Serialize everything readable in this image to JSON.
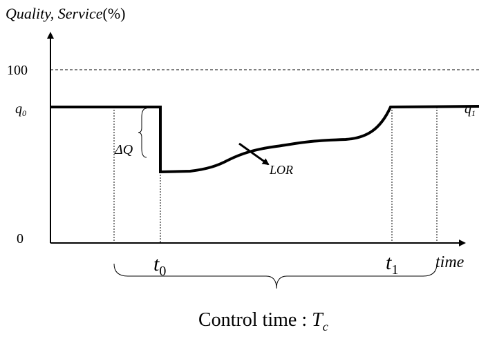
{
  "y_axis": {
    "label": "Quality, Service",
    "unit": "(%)",
    "top_label": "100",
    "bottom_label": "0"
  },
  "x_axis": {
    "label": "time"
  },
  "levels": {
    "start": {
      "base": "q",
      "sub": "0"
    },
    "end": {
      "base": "q",
      "sub": "1"
    }
  },
  "drop_label": "ΔQ",
  "curve_label": "LOR",
  "times": {
    "start": {
      "base": "t",
      "sub": "0"
    },
    "end": {
      "base": "t",
      "sub": "1"
    }
  },
  "span": {
    "text": "Control time : ",
    "base": "T",
    "sub": "c"
  }
}
